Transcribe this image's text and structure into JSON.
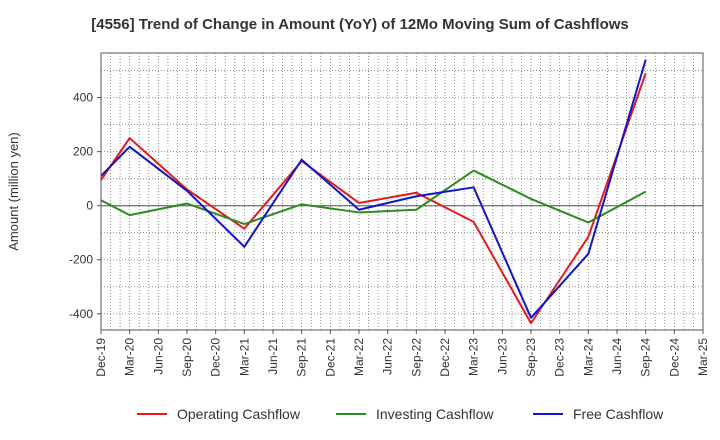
{
  "chart_data": {
    "type": "line",
    "title": "[4556]  Trend of Change in Amount (YoY) of 12Mo Moving Sum of Cashflows",
    "xlabel": "",
    "ylabel": "Amount (million yen)",
    "ylim": [
      -460,
      565
    ],
    "yticks": [
      -400,
      -200,
      0,
      200,
      400
    ],
    "categories": [
      "Dec-19",
      "Mar-20",
      "Jun-20",
      "Sep-20",
      "Dec-20",
      "Mar-21",
      "Jun-21",
      "Sep-21",
      "Dec-21",
      "Mar-22",
      "Jun-22",
      "Sep-22",
      "Dec-22",
      "Mar-23",
      "Jun-23",
      "Sep-23",
      "Dec-23",
      "Mar-24",
      "Jun-24",
      "Sep-24",
      "Dec-24",
      "Mar-25"
    ],
    "grid": true,
    "legend_position": "bottom",
    "series": [
      {
        "name": "Operating Cashflow",
        "color": "#e41a1c",
        "values": [
          95,
          250,
          null,
          60,
          null,
          -85,
          null,
          165,
          null,
          10,
          null,
          48,
          null,
          -60,
          null,
          -435,
          null,
          -115,
          null,
          490,
          null,
          null
        ]
      },
      {
        "name": "Investing Cashflow",
        "color": "#2e8b22",
        "values": [
          20,
          -35,
          null,
          8,
          null,
          -68,
          null,
          5,
          null,
          -25,
          null,
          -15,
          null,
          130,
          null,
          25,
          null,
          -62,
          null,
          52,
          null,
          null
        ]
      },
      {
        "name": "Free Cashflow",
        "color": "#1414c8",
        "values": [
          110,
          218,
          null,
          55,
          null,
          -152,
          null,
          170,
          null,
          -15,
          null,
          35,
          null,
          68,
          null,
          -415,
          null,
          -178,
          null,
          540,
          null,
          null
        ]
      }
    ]
  }
}
